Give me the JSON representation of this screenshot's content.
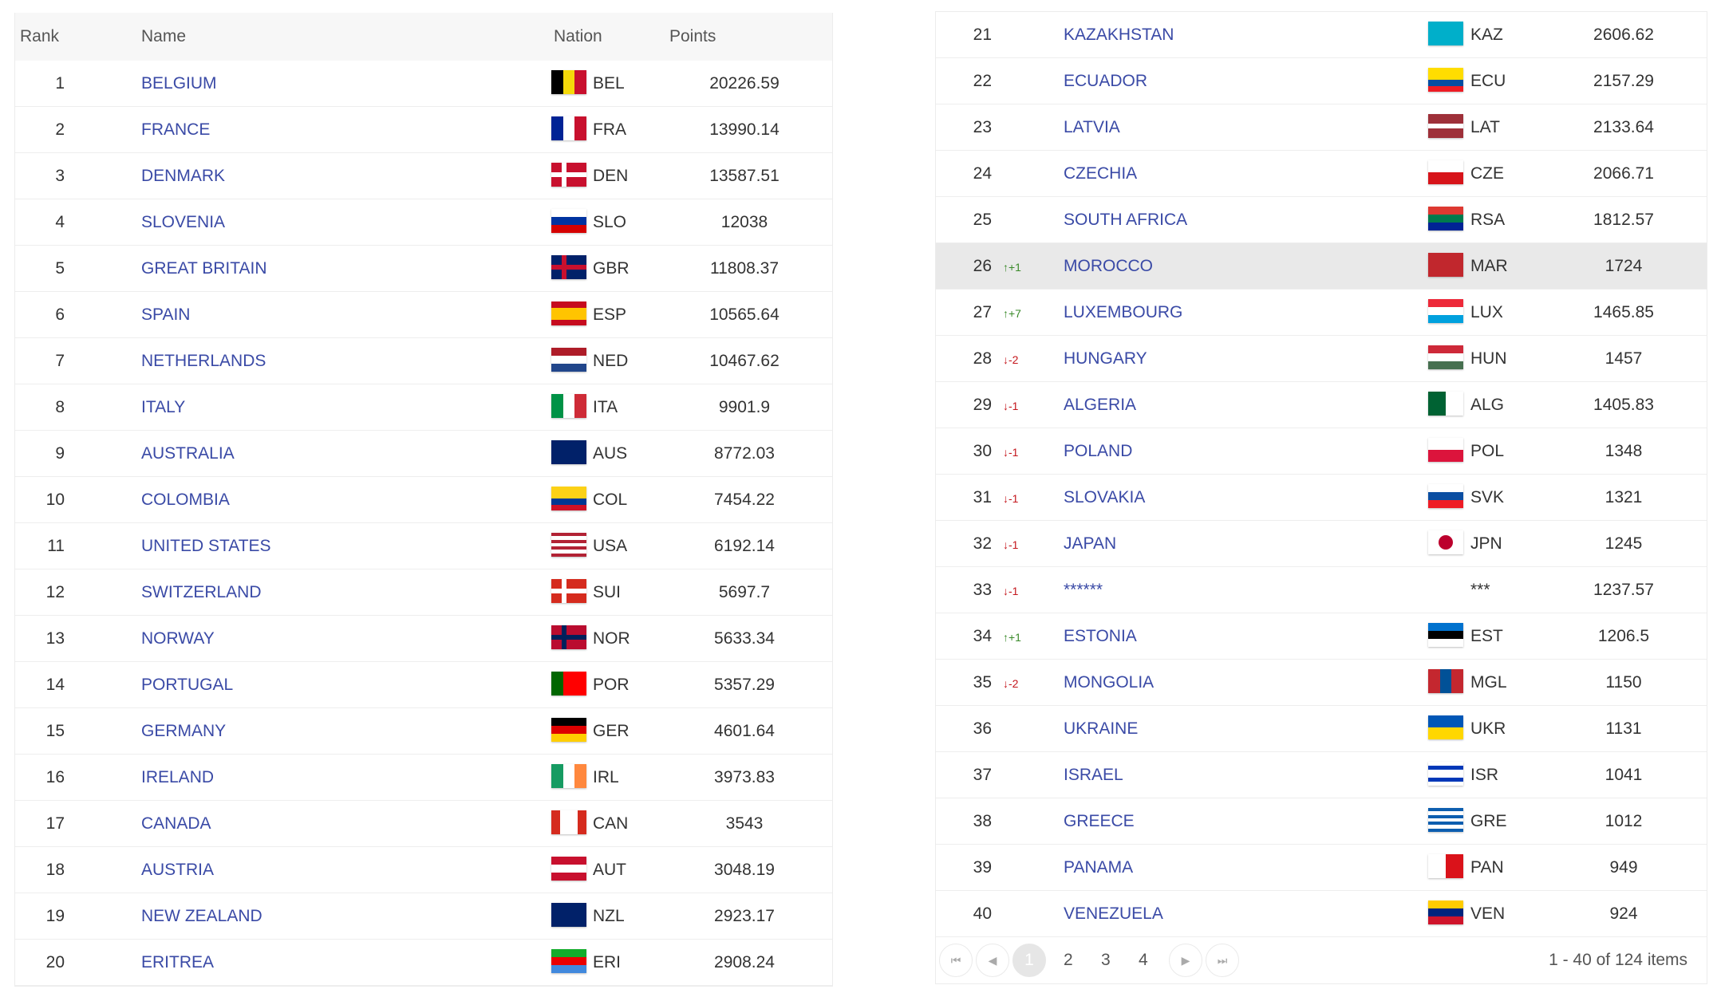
{
  "headers": {
    "rank": "Rank",
    "name": "Name",
    "nation": "Nation",
    "points": "Points"
  },
  "name_color": "#3a4aa6",
  "highlight_rank": 26,
  "rows": [
    {
      "rank": 1,
      "name": "BELGIUM",
      "code": "BEL",
      "points": "20226.59",
      "flag": {
        "dir": "v",
        "colors": [
          "#000000",
          "#f5d90a",
          "#c8102e"
        ]
      }
    },
    {
      "rank": 2,
      "name": "FRANCE",
      "code": "FRA",
      "points": "13990.14",
      "flag": {
        "dir": "v",
        "colors": [
          "#002395",
          "#ffffff",
          "#c8102e"
        ]
      }
    },
    {
      "rank": 3,
      "name": "DENMARK",
      "code": "DEN",
      "points": "13587.51",
      "flag": {
        "dir": "cross",
        "colors": [
          "#c8102e",
          "#ffffff"
        ]
      }
    },
    {
      "rank": 4,
      "name": "SLOVENIA",
      "code": "SLO",
      "points": "12038",
      "flag": {
        "dir": "h",
        "colors": [
          "#ffffff",
          "#0033a0",
          "#d50000"
        ]
      }
    },
    {
      "rank": 5,
      "name": "GREAT BRITAIN",
      "code": "GBR",
      "points": "11808.37",
      "flag": {
        "dir": "cross",
        "colors": [
          "#012169",
          "#c8102e"
        ]
      }
    },
    {
      "rank": 6,
      "name": "SPAIN",
      "code": "ESP",
      "points": "10565.64",
      "flag": {
        "dir": "h",
        "colors": [
          "#c60b1e",
          "#ffc400",
          "#ffc400",
          "#c60b1e"
        ]
      }
    },
    {
      "rank": 7,
      "name": "NETHERLANDS",
      "code": "NED",
      "points": "10467.62",
      "flag": {
        "dir": "h",
        "colors": [
          "#ae1c28",
          "#ffffff",
          "#21468b"
        ]
      }
    },
    {
      "rank": 8,
      "name": "ITALY",
      "code": "ITA",
      "points": "9901.9",
      "flag": {
        "dir": "v",
        "colors": [
          "#009246",
          "#ffffff",
          "#ce2b37"
        ]
      }
    },
    {
      "rank": 9,
      "name": "AUSTRALIA",
      "code": "AUS",
      "points": "8772.03",
      "flag": {
        "dir": "h",
        "colors": [
          "#012169"
        ]
      }
    },
    {
      "rank": 10,
      "name": "COLOMBIA",
      "code": "COL",
      "points": "7454.22",
      "flag": {
        "dir": "h",
        "colors": [
          "#fcd116",
          "#fcd116",
          "#003893",
          "#ce1126"
        ]
      }
    },
    {
      "rank": 11,
      "name": "UNITED STATES",
      "code": "USA",
      "points": "6192.14",
      "flag": {
        "dir": "h",
        "colors": [
          "#b22234",
          "#ffffff",
          "#b22234",
          "#ffffff",
          "#b22234",
          "#ffffff",
          "#b22234"
        ]
      }
    },
    {
      "rank": 12,
      "name": "SWITZERLAND",
      "code": "SUI",
      "points": "5697.7",
      "flag": {
        "dir": "cross",
        "colors": [
          "#d52b1e",
          "#ffffff"
        ]
      }
    },
    {
      "rank": 13,
      "name": "NORWAY",
      "code": "NOR",
      "points": "5633.34",
      "flag": {
        "dir": "cross",
        "colors": [
          "#ba0c2f",
          "#00205b"
        ]
      }
    },
    {
      "rank": 14,
      "name": "PORTUGAL",
      "code": "POR",
      "points": "5357.29",
      "flag": {
        "dir": "v",
        "colors": [
          "#006600",
          "#ff0000",
          "#ff0000"
        ]
      }
    },
    {
      "rank": 15,
      "name": "GERMANY",
      "code": "GER",
      "points": "4601.64",
      "flag": {
        "dir": "h",
        "colors": [
          "#000000",
          "#dd0000",
          "#ffce00"
        ]
      }
    },
    {
      "rank": 16,
      "name": "IRELAND",
      "code": "IRL",
      "points": "3973.83",
      "flag": {
        "dir": "v",
        "colors": [
          "#169b62",
          "#ffffff",
          "#ff883e"
        ]
      }
    },
    {
      "rank": 17,
      "name": "CANADA",
      "code": "CAN",
      "points": "3543",
      "flag": {
        "dir": "v",
        "colors": [
          "#d52b1e",
          "#ffffff",
          "#ffffff",
          "#d52b1e"
        ]
      }
    },
    {
      "rank": 18,
      "name": "AUSTRIA",
      "code": "AUT",
      "points": "3048.19",
      "flag": {
        "dir": "h",
        "colors": [
          "#c8102e",
          "#ffffff",
          "#c8102e"
        ]
      }
    },
    {
      "rank": 19,
      "name": "NEW ZEALAND",
      "code": "NZL",
      "points": "2923.17",
      "flag": {
        "dir": "h",
        "colors": [
          "#012169"
        ]
      }
    },
    {
      "rank": 20,
      "name": "ERITREA",
      "code": "ERI",
      "points": "2908.24",
      "flag": {
        "dir": "h",
        "colors": [
          "#12ad2b",
          "#ea0000",
          "#4189dd"
        ]
      }
    },
    {
      "rank": 21,
      "name": "KAZAKHSTAN",
      "code": "KAZ",
      "points": "2606.62",
      "flag": {
        "dir": "h",
        "colors": [
          "#00afca"
        ]
      }
    },
    {
      "rank": 22,
      "name": "ECUADOR",
      "code": "ECU",
      "points": "2157.29",
      "flag": {
        "dir": "h",
        "colors": [
          "#ffdd00",
          "#ffdd00",
          "#034ea2",
          "#ed1c24"
        ]
      }
    },
    {
      "rank": 23,
      "name": "LATVIA",
      "code": "LAT",
      "points": "2133.64",
      "flag": {
        "dir": "h",
        "colors": [
          "#9e3039",
          "#9e3039",
          "#ffffff",
          "#9e3039",
          "#9e3039"
        ]
      }
    },
    {
      "rank": 24,
      "name": "CZECHIA",
      "code": "CZE",
      "points": "2066.71",
      "flag": {
        "dir": "h",
        "colors": [
          "#ffffff",
          "#d7141a"
        ]
      }
    },
    {
      "rank": 25,
      "name": "SOUTH AFRICA",
      "code": "RSA",
      "points": "1812.57",
      "flag": {
        "dir": "h",
        "colors": [
          "#de3831",
          "#007a4d",
          "#002395"
        ]
      }
    },
    {
      "rank": 26,
      "change": "+1",
      "trend": "up",
      "name": "MOROCCO",
      "code": "MAR",
      "points": "1724",
      "flag": {
        "dir": "h",
        "colors": [
          "#c1272d"
        ]
      }
    },
    {
      "rank": 27,
      "change": "+7",
      "trend": "up",
      "name": "LUXEMBOURG",
      "code": "LUX",
      "points": "1465.85",
      "flag": {
        "dir": "h",
        "colors": [
          "#ed2939",
          "#ffffff",
          "#00a1de"
        ]
      }
    },
    {
      "rank": 28,
      "change": "-2",
      "trend": "down",
      "name": "HUNGARY",
      "code": "HUN",
      "points": "1457",
      "flag": {
        "dir": "h",
        "colors": [
          "#ce2939",
          "#ffffff",
          "#477050"
        ]
      }
    },
    {
      "rank": 29,
      "change": "-1",
      "trend": "down",
      "name": "ALGERIA",
      "code": "ALG",
      "points": "1405.83",
      "flag": {
        "dir": "v",
        "colors": [
          "#006233",
          "#ffffff"
        ]
      }
    },
    {
      "rank": 30,
      "change": "-1",
      "trend": "down",
      "name": "POLAND",
      "code": "POL",
      "points": "1348",
      "flag": {
        "dir": "h",
        "colors": [
          "#ffffff",
          "#dc143c"
        ]
      }
    },
    {
      "rank": 31,
      "change": "-1",
      "trend": "down",
      "name": "SLOVAKIA",
      "code": "SVK",
      "points": "1321",
      "flag": {
        "dir": "h",
        "colors": [
          "#ffffff",
          "#0b4ea2",
          "#ee1c25"
        ]
      }
    },
    {
      "rank": 32,
      "change": "-1",
      "trend": "down",
      "name": "JAPAN",
      "code": "JPN",
      "points": "1245",
      "flag": {
        "dir": "dot",
        "colors": [
          "#ffffff",
          "#bc002d"
        ]
      }
    },
    {
      "rank": 33,
      "change": "-1",
      "trend": "down",
      "name": "******",
      "code": "***",
      "points": "1237.57"
    },
    {
      "rank": 34,
      "change": "+1",
      "trend": "up",
      "name": "ESTONIA",
      "code": "EST",
      "points": "1206.5",
      "flag": {
        "dir": "h",
        "colors": [
          "#0072ce",
          "#000000",
          "#ffffff"
        ]
      }
    },
    {
      "rank": 35,
      "change": "-2",
      "trend": "down",
      "name": "MONGOLIA",
      "code": "MGL",
      "points": "1150",
      "flag": {
        "dir": "v",
        "colors": [
          "#c4272f",
          "#015197",
          "#c4272f"
        ]
      }
    },
    {
      "rank": 36,
      "name": "UKRAINE",
      "code": "UKR",
      "points": "1131",
      "flag": {
        "dir": "h",
        "colors": [
          "#0057b7",
          "#ffd700"
        ]
      }
    },
    {
      "rank": 37,
      "name": "ISRAEL",
      "code": "ISR",
      "points": "1041",
      "flag": {
        "dir": "h",
        "colors": [
          "#ffffff",
          "#0038b8",
          "#ffffff",
          "#ffffff",
          "#0038b8",
          "#ffffff"
        ]
      }
    },
    {
      "rank": 38,
      "name": "GREECE",
      "code": "GRE",
      "points": "1012",
      "flag": {
        "dir": "h",
        "colors": [
          "#0d5eaf",
          "#ffffff",
          "#0d5eaf",
          "#ffffff",
          "#0d5eaf",
          "#ffffff",
          "#0d5eaf"
        ]
      }
    },
    {
      "rank": 39,
      "name": "PANAMA",
      "code": "PAN",
      "points": "949",
      "flag": {
        "dir": "v",
        "colors": [
          "#ffffff",
          "#da121a"
        ]
      }
    },
    {
      "rank": 40,
      "name": "VENEZUELA",
      "code": "VEN",
      "points": "924",
      "flag": {
        "dir": "h",
        "colors": [
          "#ffcc00",
          "#00247d",
          "#cf142b"
        ]
      }
    }
  ],
  "pagination": {
    "first": "⏮",
    "prev": "◀",
    "pages": [
      "1",
      "2",
      "3",
      "4"
    ],
    "current": "1",
    "next": "▶",
    "last": "⏭",
    "info": "1 - 40 of 124 items"
  }
}
